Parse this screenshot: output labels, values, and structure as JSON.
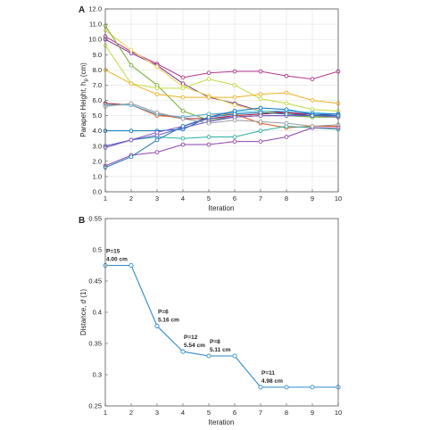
{
  "chart_data": [
    {
      "panel_label": "A",
      "type": "line",
      "xlabel": "Iteration",
      "ylabel_main": "Parapet Height, h",
      "ylabel_sub": "p",
      "ylabel_unit": "(cm)",
      "xlim": [
        1,
        10
      ],
      "ylim": [
        0,
        12
      ],
      "x_ticks": [
        1,
        2,
        3,
        4,
        5,
        6,
        7,
        8,
        9,
        10
      ],
      "y_ticks": [
        "0.0",
        "1.0",
        "2.0",
        "3.0",
        "4.0",
        "5.0",
        "6.0",
        "7.0",
        "8.0",
        "9.0",
        "10.0",
        "11.0",
        "12.0"
      ],
      "grid": true,
      "x": [
        1,
        2,
        3,
        4,
        5,
        6,
        7,
        8,
        9,
        10
      ],
      "series": [
        {
          "color": "#b5338a",
          "values": [
            10.2,
            9.2,
            8.4,
            7.5,
            7.8,
            7.9,
            7.9,
            7.6,
            7.4,
            7.9
          ]
        },
        {
          "color": "#7e2f8e",
          "values": [
            10.0,
            9.1,
            8.3,
            7.1,
            6.2,
            5.8,
            5.3,
            5.2,
            5.1,
            5.0
          ]
        },
        {
          "color": "#e8d44d",
          "values": [
            10.6,
            9.3,
            8.2,
            6.9,
            6.3,
            5.7,
            5.3,
            5.1,
            4.9,
            4.9
          ]
        },
        {
          "color": "#77ac30",
          "values": [
            10.9,
            8.3,
            7.0,
            5.3,
            4.7,
            4.9,
            5.0,
            5.0,
            4.9,
            4.9
          ]
        },
        {
          "color": "#bcdc3c",
          "values": [
            9.6,
            7.1,
            6.8,
            6.8,
            7.4,
            7.0,
            6.1,
            5.8,
            5.4,
            5.3
          ]
        },
        {
          "color": "#edb120",
          "values": [
            8.0,
            7.1,
            6.4,
            6.2,
            6.2,
            6.2,
            6.4,
            6.5,
            6.0,
            5.8
          ]
        },
        {
          "color": "#a2142f",
          "values": [
            5.8,
            5.7,
            5.1,
            4.8,
            4.8,
            5.0,
            5.1,
            5.2,
            5.0,
            5.0
          ]
        },
        {
          "color": "#d95319",
          "values": [
            5.7,
            5.7,
            5.0,
            4.9,
            5.1,
            5.1,
            4.5,
            4.2,
            4.3,
            4.3
          ]
        },
        {
          "color": "#4dbeee",
          "values": [
            5.7,
            5.7,
            5.1,
            4.9,
            5.1,
            5.2,
            5.3,
            5.3,
            5.2,
            5.1
          ]
        },
        {
          "color": "#0072bd",
          "values": [
            4.0,
            4.0,
            4.0,
            4.1,
            4.9,
            5.3,
            5.5,
            5.4,
            5.1,
            5.1
          ]
        },
        {
          "color": "#2ab0a0",
          "values": [
            3.0,
            3.4,
            3.6,
            3.5,
            3.6,
            3.6,
            4.0,
            4.3,
            4.2,
            4.1
          ]
        },
        {
          "color": "#6a5acd",
          "values": [
            3.0,
            3.4,
            3.7,
            4.2,
            4.6,
            4.9,
            5.0,
            5.0,
            5.0,
            5.0
          ]
        },
        {
          "color": "#7e57c2",
          "values": [
            2.9,
            3.4,
            3.9,
            4.3,
            4.8,
            4.9,
            5.0,
            5.0,
            5.0,
            4.9
          ]
        },
        {
          "color": "#8e44ad",
          "values": [
            1.7,
            2.4,
            2.6,
            3.1,
            3.1,
            3.3,
            3.3,
            3.6,
            4.2,
            4.2
          ]
        },
        {
          "color": "#1f77b4",
          "values": [
            1.6,
            2.3,
            3.4,
            4.3,
            4.9,
            5.1,
            5.2,
            5.1,
            5.0,
            5.0
          ]
        },
        {
          "color": "#9a9a9a",
          "values": [
            5.6,
            5.8,
            5.2,
            4.8,
            4.5,
            4.7,
            4.6,
            4.5,
            4.3,
            4.4
          ]
        }
      ]
    },
    {
      "panel_label": "B",
      "type": "line",
      "xlabel": "Iteration",
      "ylabel_main": "Distance, ",
      "ylabel_italic": "d",
      "ylabel_unit": " (1)",
      "xlim": [
        1,
        10
      ],
      "ylim": [
        0.25,
        0.55
      ],
      "x_ticks": [
        1,
        2,
        3,
        4,
        5,
        6,
        7,
        8,
        9,
        10
      ],
      "y_ticks": [
        "0.25",
        "0.3",
        "0.35",
        "0.4",
        "0.45",
        "0.5",
        "0.55"
      ],
      "grid": false,
      "series": [
        {
          "color": "#2e8bd0",
          "x": [
            1,
            2,
            3,
            4,
            5,
            6,
            7,
            8,
            9,
            10
          ],
          "values": [
            0.475,
            0.475,
            0.378,
            0.337,
            0.33,
            0.33,
            0.28,
            0.28,
            0.28,
            0.28
          ]
        }
      ],
      "annotations": [
        {
          "x": 1,
          "y": 0.475,
          "line1": "P=15",
          "line2": "4.00 cm"
        },
        {
          "x": 3,
          "y": 0.378,
          "line1": "P=6",
          "line2": "5.16 cm"
        },
        {
          "x": 4,
          "y": 0.337,
          "line1": "P=12",
          "line2": "5.54 cm"
        },
        {
          "x": 5,
          "y": 0.33,
          "line1": "P=8",
          "line2": "5.11 cm"
        },
        {
          "x": 7,
          "y": 0.28,
          "line1": "P=11",
          "line2": "4.98 cm"
        }
      ]
    }
  ]
}
